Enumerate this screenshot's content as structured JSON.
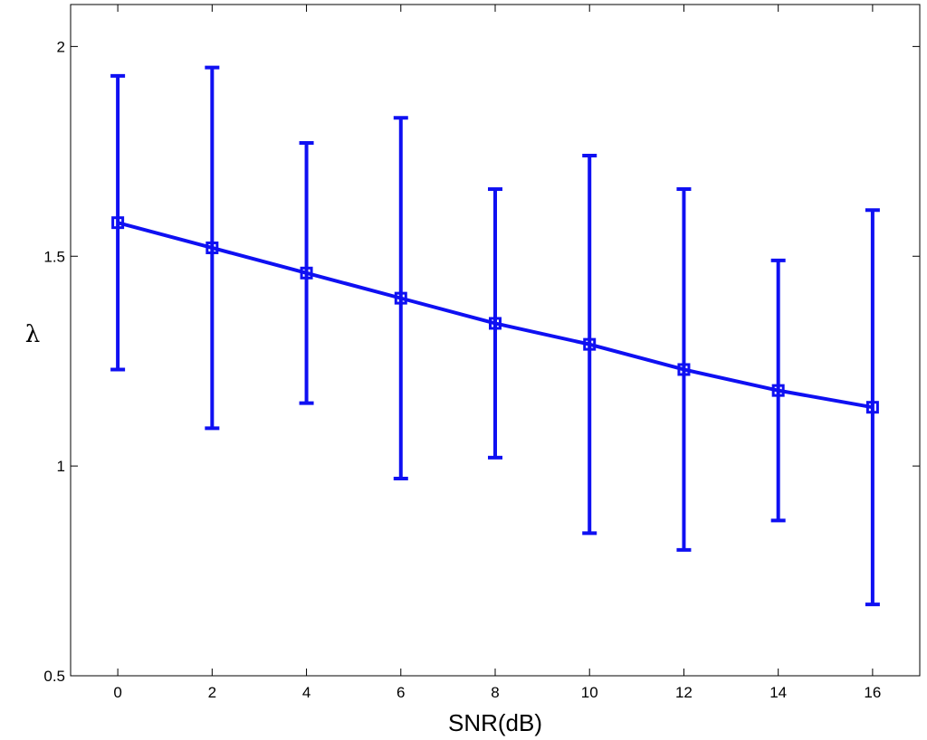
{
  "chart_data": {
    "type": "line",
    "title": "",
    "xlabel": "SNR(dB)",
    "ylabel": "λ",
    "xlim": [
      -1,
      17
    ],
    "ylim": [
      0.5,
      2.1
    ],
    "xticks": [
      0,
      2,
      4,
      6,
      8,
      10,
      12,
      14,
      16
    ],
    "xtick_labels": [
      "0",
      "2",
      "4",
      "6",
      "8",
      "10",
      "12",
      "14",
      "16"
    ],
    "yticks": [
      0.5,
      1,
      1.5,
      2
    ],
    "ytick_labels": [
      "0.5",
      "1",
      "1.5",
      "2"
    ],
    "grid": false,
    "legend": "none",
    "series": [
      {
        "x": [
          0,
          2,
          4,
          6,
          8,
          10,
          12,
          14,
          16
        ],
        "y": [
          1.58,
          1.52,
          1.46,
          1.4,
          1.34,
          1.29,
          1.23,
          1.18,
          1.14
        ],
        "err_upper": [
          1.93,
          1.95,
          1.77,
          1.83,
          1.66,
          1.74,
          1.66,
          1.49,
          1.61
        ],
        "err_lower": [
          1.23,
          1.09,
          1.15,
          0.97,
          1.02,
          0.84,
          0.8,
          0.87,
          0.67
        ],
        "color": "#0f10f2",
        "marker": "square"
      }
    ]
  }
}
